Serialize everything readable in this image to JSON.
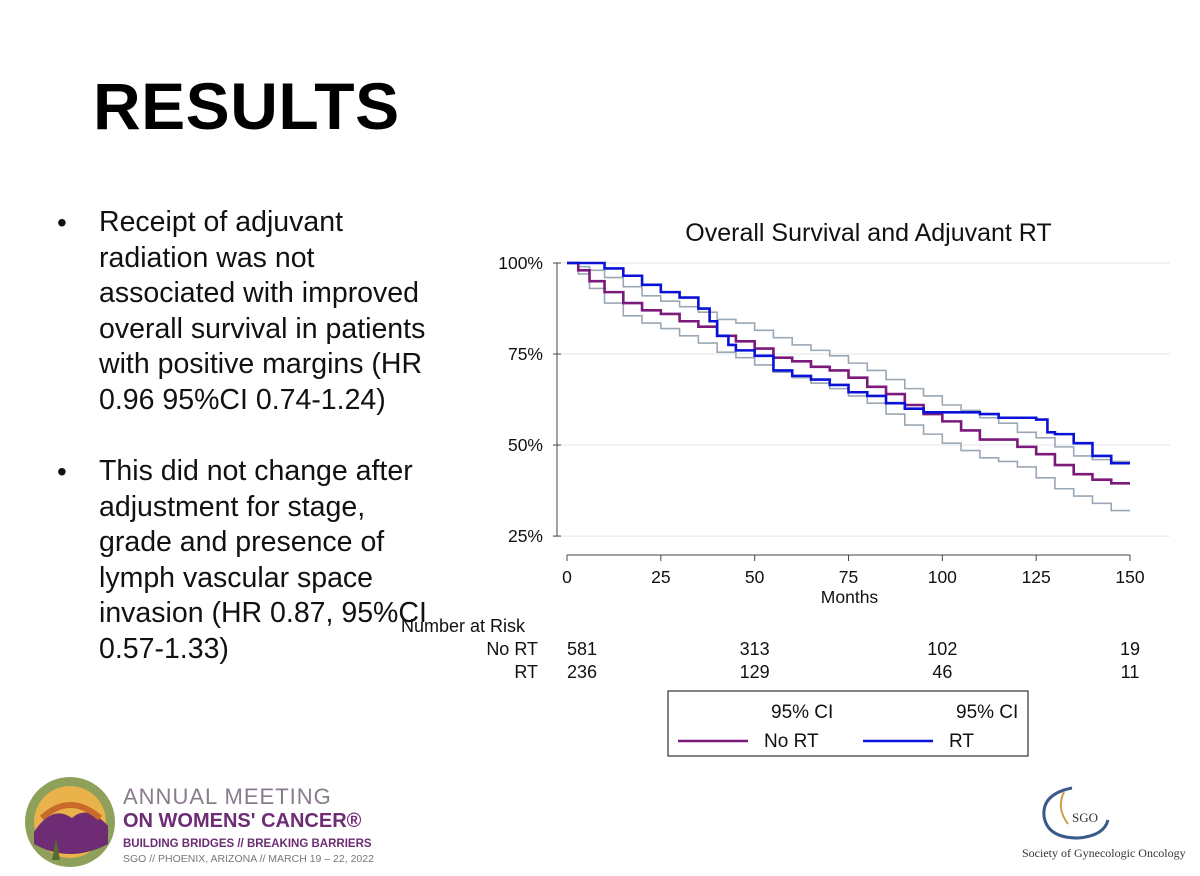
{
  "slide": {
    "title": "RESULTS",
    "bullets": [
      {
        "text": "Receipt of adjuvant radiation was not associated with improved overall survival in patients with positive margins (HR 0.96 95%CI 0.74-1.24)"
      },
      {
        "text": "This did not change after adjustment for stage, grade and presence of lymph vascular space invasion (HR 0.87, 95%CI 0.57-1.33)"
      }
    ]
  },
  "chart_data": {
    "type": "line",
    "title": "Overall Survival and Adjuvant RT",
    "xlabel": "Months",
    "ylabel": "",
    "xlim": [
      0,
      150
    ],
    "ylim": [
      22,
      100
    ],
    "x_ticks": [
      "0",
      "25",
      "50",
      "75",
      "100",
      "125",
      "150"
    ],
    "x_tick_values": [
      0,
      25,
      50,
      75,
      100,
      125,
      150
    ],
    "y_ticks": [
      "100%",
      "75%",
      "50%",
      "25%"
    ],
    "y_tick_values": [
      100,
      75,
      50,
      25
    ],
    "grid": "horizontal",
    "colors": {
      "no_rt": "#7b1a7b",
      "rt": "#0a12d8",
      "ci": "#9aa7b4"
    },
    "series": [
      {
        "name": "No RT",
        "color": "#7b1a7b",
        "x": [
          0,
          3,
          6,
          10,
          15,
          20,
          25,
          30,
          35,
          40,
          45,
          50,
          55,
          60,
          65,
          70,
          75,
          80,
          85,
          90,
          95,
          100,
          105,
          110,
          115,
          120,
          125,
          130,
          135,
          140,
          145,
          150
        ],
        "y": [
          100,
          98,
          95,
          92,
          89,
          87,
          86,
          84,
          82.5,
          80,
          78.5,
          76.5,
          74,
          73,
          71.5,
          70.5,
          68.5,
          66,
          64,
          61,
          58.5,
          56.5,
          54,
          51.5,
          51.5,
          49.5,
          47.5,
          44.5,
          42,
          40.5,
          39.5,
          39.5
        ]
      },
      {
        "name": "RT",
        "color": "#0a12d8",
        "x": [
          0,
          5,
          10,
          15,
          20,
          25,
          30,
          35,
          38,
          40,
          43,
          45,
          50,
          55,
          60,
          65,
          70,
          75,
          80,
          85,
          90,
          95,
          100,
          105,
          110,
          115,
          120,
          125,
          128,
          130,
          135,
          140,
          145,
          150
        ],
        "y": [
          100,
          100,
          98.5,
          96.5,
          94,
          92,
          90.5,
          87.5,
          84,
          80,
          77.5,
          76,
          74.5,
          70.5,
          69,
          68,
          66.5,
          64.5,
          63.5,
          61.5,
          60,
          59,
          59,
          59,
          58.5,
          57.5,
          57.5,
          57,
          53.5,
          53,
          50.5,
          47,
          45,
          45
        ]
      }
    ],
    "ci_bands": [
      {
        "series": "No RT",
        "upper": [
          100,
          99,
          98,
          96,
          93.5,
          91,
          89.5,
          88,
          86.5,
          84.5,
          83.5,
          81.5,
          79.5,
          77.5,
          76,
          74.5,
          72.5,
          70.5,
          68,
          65.5,
          63.5,
          61,
          59.5,
          57.5,
          56,
          53.5,
          52,
          49.5,
          47,
          46,
          45.5,
          45.5
        ],
        "lower": [
          100,
          97,
          93,
          89,
          85.5,
          83.5,
          82,
          80,
          78,
          75.5,
          74,
          72,
          70,
          68.5,
          67,
          65.5,
          63.5,
          61.5,
          58.5,
          55.5,
          53,
          50.5,
          48.5,
          46.5,
          45.5,
          44,
          41,
          38,
          36,
          34,
          32,
          32
        ]
      }
    ],
    "number_at_risk": {
      "label": "Number at Risk",
      "x": [
        0,
        50,
        100,
        150
      ],
      "rows": [
        {
          "name": "No RT",
          "values": [
            "581",
            "313",
            "102",
            "19"
          ]
        },
        {
          "name": "RT",
          "values": [
            "236",
            "129",
            "46",
            "11"
          ]
        }
      ]
    },
    "legend": {
      "position": "bottom",
      "entries": [
        {
          "ci_label": "95% CI",
          "label": "No RT",
          "color": "#7b1a7b"
        },
        {
          "ci_label": "95% CI",
          "label": "RT",
          "color": "#0a12d8"
        }
      ]
    }
  },
  "footer": {
    "meeting_line1": "ANNUAL MEETING",
    "meeting_line2": "ON WOMENS' CANCER®",
    "meeting_line3": "BUILDING BRIDGES // BREAKING BARRIERS",
    "meeting_line4": "SGO // PHOENIX, ARIZONA // MARCH 19 – 22, 2022",
    "sgo_abbrev": "SGO",
    "sgo_name": "Society of Gynecologic Oncology"
  }
}
